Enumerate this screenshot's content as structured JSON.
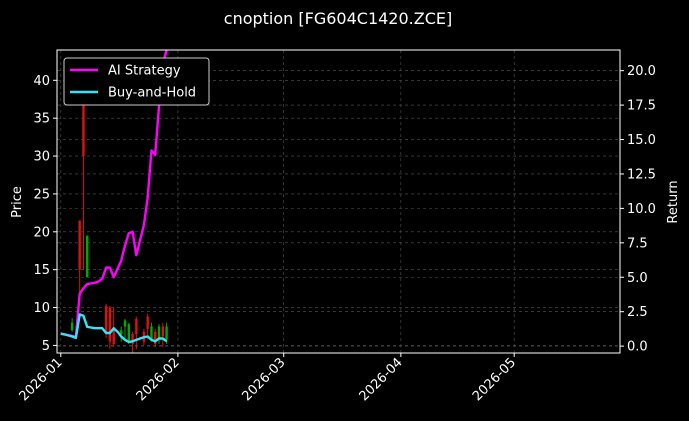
{
  "chart_data": {
    "type": "candlestick+line",
    "title": "cnoption [FG604C1420.ZCE]",
    "ylabel_left": "Price",
    "ylabel_right": "Return",
    "ylim_left": [
      4.0,
      44.0
    ],
    "ylim_right": [
      -0.5,
      21.5
    ],
    "y_ticks_left": [
      5,
      10,
      15,
      20,
      25,
      30,
      35,
      40
    ],
    "y_ticks_right": [
      "0.0",
      "2.5",
      "5.0",
      "7.5",
      "10.0",
      "12.5",
      "15.0",
      "17.5",
      "20.0"
    ],
    "x_ticks": [
      "2026-01",
      "2026-02",
      "2026-03",
      "2026-04",
      "2026-05"
    ],
    "grid": true,
    "legend_position": "top-left",
    "series": [
      {
        "name": "AI Strategy",
        "color": "#ff00ff",
        "x": [
          "2026-01-01",
          "2026-01-02",
          "2026-01-04",
          "2026-01-05",
          "2026-01-06",
          "2026-01-07",
          "2026-01-08",
          "2026-01-09",
          "2026-01-10",
          "2026-01-11",
          "2026-01-12",
          "2026-01-13",
          "2026-01-14",
          "2026-01-15",
          "2026-01-16",
          "2026-01-17",
          "2026-01-18",
          "2026-01-19",
          "2026-01-20",
          "2026-01-21",
          "2026-01-22",
          "2026-01-23",
          "2026-01-24",
          "2026-01-25",
          "2026-01-26",
          "2026-01-27",
          "2026-01-28",
          "2026-01-29"
        ],
        "values": [
          0.9,
          0.85,
          0.75,
          0.7,
          3.8,
          4.2,
          4.5,
          4.55,
          4.6,
          4.7,
          4.9,
          5.7,
          5.7,
          5.0,
          5.6,
          6.2,
          7.3,
          8.2,
          8.3,
          6.6,
          7.7,
          8.8,
          10.8,
          14.2,
          13.9,
          17.4,
          20.5,
          21.5
        ]
      },
      {
        "name": "Buy-and-Hold",
        "color": "#33e5f5",
        "x": [
          "2026-01-01",
          "2026-01-02",
          "2026-01-04",
          "2026-01-05",
          "2026-01-06",
          "2026-01-07",
          "2026-01-08",
          "2026-01-09",
          "2026-01-10",
          "2026-01-11",
          "2026-01-12",
          "2026-01-13",
          "2026-01-14",
          "2026-01-15",
          "2026-01-16",
          "2026-01-17",
          "2026-01-18",
          "2026-01-19",
          "2026-01-20",
          "2026-01-21",
          "2026-01-22",
          "2026-01-23",
          "2026-01-24",
          "2026-01-25",
          "2026-01-26",
          "2026-01-27",
          "2026-01-28",
          "2026-01-29"
        ],
        "values": [
          0.9,
          0.85,
          0.7,
          0.6,
          2.3,
          2.2,
          1.4,
          1.35,
          1.3,
          1.3,
          1.3,
          0.95,
          0.95,
          1.3,
          1.05,
          0.7,
          0.45,
          0.3,
          0.35,
          0.45,
          0.55,
          0.65,
          0.7,
          0.45,
          0.35,
          0.55,
          0.55,
          0.35
        ]
      }
    ],
    "candles": [
      {
        "x": "2026-01-04",
        "open": 7.0,
        "close": 8.0,
        "low": 6.8,
        "high": 8.6
      },
      {
        "x": "2026-01-06",
        "open": 21.5,
        "close": 15.0,
        "low": 12.0,
        "high": 21.5
      },
      {
        "x": "2026-01-07",
        "open": 42.0,
        "close": 30.0,
        "low": 15.0,
        "high": 42.0
      },
      {
        "x": "2026-01-08",
        "open": 14.0,
        "close": 19.5,
        "low": 14.0,
        "high": 19.5
      },
      {
        "x": "2026-01-13",
        "open": 10.2,
        "close": 6.5,
        "low": 6.0,
        "high": 10.5
      },
      {
        "x": "2026-01-14",
        "open": 10.0,
        "close": 5.5,
        "low": 4.5,
        "high": 10.2
      },
      {
        "x": "2026-01-15",
        "open": 7.2,
        "close": 5.2,
        "low": 4.8,
        "high": 10.0
      },
      {
        "x": "2026-01-17",
        "open": 6.5,
        "close": 7.0,
        "low": 5.5,
        "high": 7.5
      },
      {
        "x": "2026-01-18",
        "open": 7.5,
        "close": 8.3,
        "low": 5.8,
        "high": 8.5
      },
      {
        "x": "2026-01-19",
        "open": 5.5,
        "close": 7.8,
        "low": 5.2,
        "high": 8.0
      },
      {
        "x": "2026-01-20",
        "open": 6.5,
        "close": 5.2,
        "low": 4.0,
        "high": 6.8
      },
      {
        "x": "2026-01-21",
        "open": 8.5,
        "close": 6.5,
        "low": 4.5,
        "high": 8.8
      },
      {
        "x": "2026-01-23",
        "open": 6.8,
        "close": 5.5,
        "low": 5.0,
        "high": 7.2
      },
      {
        "x": "2026-01-24",
        "open": 8.8,
        "close": 7.2,
        "low": 5.8,
        "high": 9.2
      },
      {
        "x": "2026-01-25",
        "open": 5.8,
        "close": 7.5,
        "low": 5.5,
        "high": 8.0
      },
      {
        "x": "2026-01-26",
        "open": 6.8,
        "close": 5.2,
        "low": 4.8,
        "high": 7.2
      },
      {
        "x": "2026-01-27",
        "open": 6.0,
        "close": 7.5,
        "low": 5.2,
        "high": 7.8
      },
      {
        "x": "2026-01-28",
        "open": 7.5,
        "close": 6.2,
        "low": 4.8,
        "high": 8.0
      },
      {
        "x": "2026-01-29",
        "open": 5.8,
        "close": 7.5,
        "low": 5.2,
        "high": 8.0
      }
    ],
    "candle_colors": {
      "up": "#00aa00",
      "down": "#dd1111"
    }
  }
}
